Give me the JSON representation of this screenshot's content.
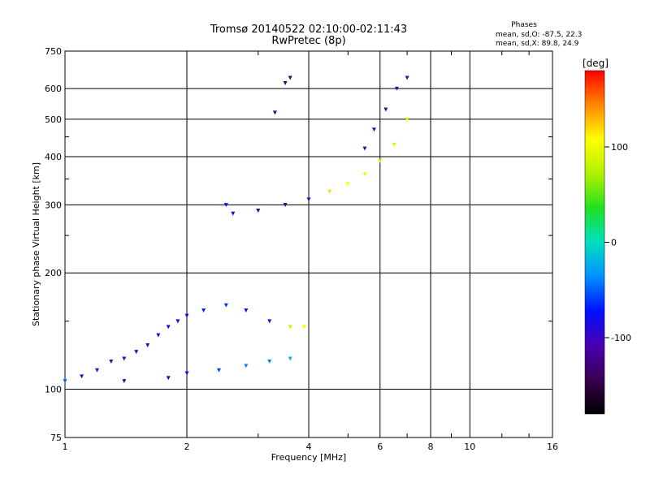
{
  "header": {
    "title": "Tromsø 20140522 02:10:00-02:11:43",
    "subtitle": "RwPretec (8p)",
    "stats_heading": "Phases",
    "stats_o": "mean, sd,O: -87.5, 22.3",
    "stats_x": "mean, sd,X:  89.8, 24.9"
  },
  "colorbar": {
    "unit_label": "[deg]",
    "ticks": [
      "100",
      "0",
      "-100"
    ],
    "tick_values": [
      100,
      0,
      -100
    ],
    "range": [
      -180,
      180
    ]
  },
  "chart_data": {
    "type": "scatter",
    "xlabel": "Frequency [MHz]",
    "ylabel": "Stationary phase Virtual Height [km]",
    "xscale": "log",
    "yscale": "log",
    "xlim": [
      1,
      16
    ],
    "ylim": [
      75,
      750
    ],
    "xticks": [
      1,
      2,
      4,
      6,
      8,
      10,
      16
    ],
    "xtick_labels": [
      "1",
      "2",
      "4",
      "6",
      "8",
      "10",
      "16"
    ],
    "yticks": [
      75,
      100,
      200,
      300,
      400,
      500,
      600,
      750
    ],
    "ytick_labels": [
      "75",
      "100",
      "200",
      "300",
      "400",
      "500",
      "600",
      "750"
    ],
    "grid": true,
    "color_encoding": "phase [deg]",
    "series": [
      {
        "values": [
          {
            "x": 1.0,
            "y": 105,
            "phase": -50
          },
          {
            "x": 1.1,
            "y": 108,
            "phase": -85
          },
          {
            "x": 1.2,
            "y": 112,
            "phase": -100
          },
          {
            "x": 1.3,
            "y": 118,
            "phase": -100
          },
          {
            "x": 1.4,
            "y": 120,
            "phase": -100
          },
          {
            "x": 1.5,
            "y": 125,
            "phase": -95
          },
          {
            "x": 1.6,
            "y": 130,
            "phase": -95
          },
          {
            "x": 1.7,
            "y": 138,
            "phase": -90
          },
          {
            "x": 1.8,
            "y": 145,
            "phase": -85
          },
          {
            "x": 1.9,
            "y": 150,
            "phase": -80
          },
          {
            "x": 2.0,
            "y": 155,
            "phase": -75
          },
          {
            "x": 2.2,
            "y": 160,
            "phase": -70
          },
          {
            "x": 2.5,
            "y": 165,
            "phase": -65
          },
          {
            "x": 2.8,
            "y": 160,
            "phase": -80
          },
          {
            "x": 3.2,
            "y": 150,
            "phase": -100
          },
          {
            "x": 3.6,
            "y": 145,
            "phase": 80
          },
          {
            "x": 3.9,
            "y": 145,
            "phase": 110
          }
        ]
      },
      {
        "values": [
          {
            "x": 1.4,
            "y": 105,
            "phase": -105
          },
          {
            "x": 1.8,
            "y": 107,
            "phase": -105
          },
          {
            "x": 2.0,
            "y": 110,
            "phase": -90
          },
          {
            "x": 2.4,
            "y": 112,
            "phase": -60
          },
          {
            "x": 2.8,
            "y": 115,
            "phase": -40
          },
          {
            "x": 3.2,
            "y": 118,
            "phase": -40
          },
          {
            "x": 3.6,
            "y": 120,
            "phase": -20
          }
        ]
      },
      {
        "values": [
          {
            "x": 2.5,
            "y": 300,
            "phase": -70
          },
          {
            "x": 2.6,
            "y": 285,
            "phase": -80
          },
          {
            "x": 3.0,
            "y": 290,
            "phase": -130
          },
          {
            "x": 3.5,
            "y": 300,
            "phase": -125
          },
          {
            "x": 4.0,
            "y": 310,
            "phase": -100
          },
          {
            "x": 4.5,
            "y": 325,
            "phase": 120
          },
          {
            "x": 5.0,
            "y": 340,
            "phase": 110
          },
          {
            "x": 5.5,
            "y": 360,
            "phase": 100
          },
          {
            "x": 6.0,
            "y": 390,
            "phase": 80
          },
          {
            "x": 6.5,
            "y": 430,
            "phase": 90
          },
          {
            "x": 7.0,
            "y": 500,
            "phase": 100
          }
        ]
      },
      {
        "values": [
          {
            "x": 5.5,
            "y": 420,
            "phase": -110
          },
          {
            "x": 5.8,
            "y": 470,
            "phase": -110
          },
          {
            "x": 6.2,
            "y": 530,
            "phase": -110
          },
          {
            "x": 6.6,
            "y": 600,
            "phase": -100
          },
          {
            "x": 7.0,
            "y": 640,
            "phase": -95
          }
        ]
      },
      {
        "values": [
          {
            "x": 3.3,
            "y": 520,
            "phase": -130
          },
          {
            "x": 3.5,
            "y": 620,
            "phase": -130
          },
          {
            "x": 3.6,
            "y": 640,
            "phase": -140
          }
        ]
      }
    ]
  }
}
